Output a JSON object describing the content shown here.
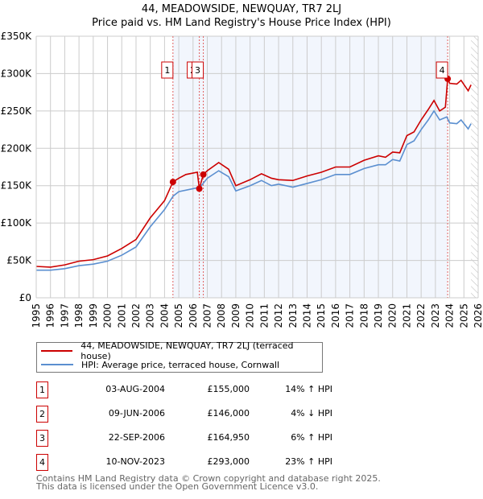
{
  "title": "44, MEADOWSIDE, NEWQUAY, TR7 2LJ",
  "subtitle": "Price paid vs. HM Land Registry's House Price Index (HPI)",
  "chart_data": {
    "type": "line",
    "title": "44, MEADOWSIDE, NEWQUAY, TR7 2LJ — Price paid vs. HM Land Registry's House Price Index (HPI)",
    "xlim": [
      1995,
      2026
    ],
    "ylim": [
      0,
      350000
    ],
    "x_ticks": [
      "1995",
      "1996",
      "1997",
      "1998",
      "1999",
      "2000",
      "2001",
      "2002",
      "2003",
      "2004",
      "2005",
      "2006",
      "2007",
      "2008",
      "2009",
      "2010",
      "2011",
      "2012",
      "2013",
      "2014",
      "2015",
      "2016",
      "2017",
      "2018",
      "2019",
      "2020",
      "2021",
      "2022",
      "2023",
      "2024",
      "2025",
      "2026"
    ],
    "y_ticks": [
      {
        "v": 0,
        "label": "£0"
      },
      {
        "v": 50000,
        "label": "£50K"
      },
      {
        "v": 100000,
        "label": "£100K"
      },
      {
        "v": 150000,
        "label": "£150K"
      },
      {
        "v": 200000,
        "label": "£200K"
      },
      {
        "v": 250000,
        "label": "£250K"
      },
      {
        "v": 300000,
        "label": "£300K"
      },
      {
        "v": 350000,
        "label": "£350K"
      }
    ],
    "grid": true,
    "series": [
      {
        "name": "44, MEADOWSIDE, NEWQUAY, TR7 2LJ (terraced house)",
        "color": "#cc0000",
        "x": [
          1995,
          1996,
          1997,
          1998,
          1999,
          2000,
          2001,
          2002,
          2003,
          2004,
          2004.59,
          2005,
          2005.5,
          2006.3,
          2006.44,
          2006.72,
          2007,
          2007.8,
          2008.5,
          2009,
          2010,
          2010.8,
          2011.5,
          2012,
          2013,
          2014,
          2015,
          2016,
          2017,
          2018,
          2019,
          2019.5,
          2020,
          2020.5,
          2021,
          2021.5,
          2022,
          2022.5,
          2022.9,
          2023.3,
          2023.7,
          2023.86,
          2024,
          2024.5,
          2024.8,
          2025.3,
          2025.5
        ],
        "y": [
          42000,
          41000,
          44000,
          49000,
          51000,
          56000,
          66000,
          78000,
          107000,
          130000,
          155000,
          160000,
          165000,
          168000,
          146000,
          164950,
          170000,
          181000,
          172000,
          150000,
          158000,
          166000,
          160000,
          158000,
          157000,
          163000,
          168000,
          175000,
          175000,
          184000,
          190000,
          188000,
          195000,
          194000,
          217000,
          222000,
          238000,
          252000,
          264000,
          250000,
          255000,
          293000,
          287000,
          286000,
          291000,
          277000,
          285000
        ]
      },
      {
        "name": "HPI: Average price, terraced house, Cornwall",
        "color": "#5b8fd0",
        "x": [
          1995,
          1996,
          1997,
          1998,
          1999,
          2000,
          2001,
          2002,
          2003,
          2004,
          2004.6,
          2005,
          2006,
          2006.5,
          2007,
          2007.8,
          2008.5,
          2009,
          2010,
          2010.8,
          2011.5,
          2012,
          2013,
          2014,
          2015,
          2016,
          2017,
          2018,
          2019,
          2019.5,
          2020,
          2020.5,
          2021,
          2021.5,
          2022,
          2022.5,
          2022.9,
          2023.3,
          2023.8,
          2024,
          2024.5,
          2024.8,
          2025.3,
          2025.5
        ],
        "y": [
          37000,
          37000,
          39000,
          43000,
          45000,
          49000,
          57000,
          68000,
          95000,
          118000,
          136000,
          142000,
          146000,
          148000,
          160000,
          170000,
          162000,
          143000,
          150000,
          157000,
          150000,
          152000,
          148000,
          153000,
          158000,
          165000,
          165000,
          173000,
          178000,
          178000,
          185000,
          183000,
          205000,
          210000,
          225000,
          238000,
          250000,
          238000,
          242000,
          234000,
          233000,
          238000,
          226000,
          233000
        ]
      }
    ],
    "sales": [
      {
        "n": "1",
        "x": 2004.59,
        "y": 155000,
        "date": "03-AUG-2004",
        "price": "£155,000",
        "hpi": "14% ↑ HPI"
      },
      {
        "n": "2",
        "x": 2006.44,
        "y": 146000,
        "date": "09-JUN-2006",
        "price": "£146,000",
        "hpi": "4% ↓ HPI"
      },
      {
        "n": "3",
        "x": 2006.72,
        "y": 164950,
        "date": "22-SEP-2006",
        "price": "£164,950",
        "hpi": "6% ↑ HPI"
      },
      {
        "n": "4",
        "x": 2023.86,
        "y": 293000,
        "date": "10-NOV-2023",
        "price": "£293,000",
        "hpi": "23% ↑ HPI"
      }
    ],
    "shaded_range": [
      2004.59,
      2023.86
    ],
    "forecast_hatch_from": 2025.5
  },
  "legend": {
    "property": "44, MEADOWSIDE, NEWQUAY, TR7 2LJ (terraced house)",
    "hpi": "HPI: Average price, terraced house, Cornwall"
  },
  "footer": {
    "line1": "Contains HM Land Registry data © Crown copyright and database right 2025.",
    "line2": "This data is licensed under the Open Government Licence v3.0."
  }
}
